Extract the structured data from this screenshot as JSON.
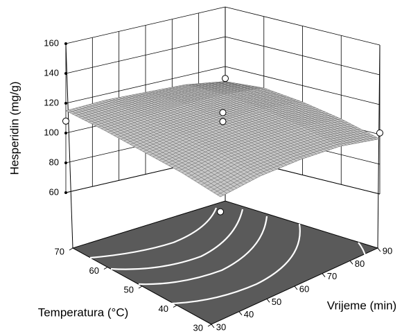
{
  "chart_data": {
    "type": "surface",
    "xlabel": "Temperatura (°C)",
    "xlim": [
      30,
      70
    ],
    "xticks": [
      30,
      40,
      50,
      60,
      70
    ],
    "ylabel": "Vrijeme (min)",
    "ylim": [
      30,
      90
    ],
    "yticks": [
      30,
      40,
      50,
      60,
      70,
      80,
      90
    ],
    "zlabel": "Hesperidin (mg/g)",
    "zlim": [
      60,
      160
    ],
    "zticks": [
      60,
      80,
      100,
      120,
      140,
      160
    ],
    "surface": {
      "x": [
        30,
        40,
        50,
        60,
        70
      ],
      "y": [
        30,
        45,
        60,
        75,
        90
      ],
      "z": [
        [
          86,
          93,
          97,
          99,
          97
        ],
        [
          95,
          101,
          104,
          106,
          104
        ],
        [
          102,
          107,
          110,
          111,
          109
        ],
        [
          109,
          112,
          114,
          114,
          112
        ],
        [
          115,
          116,
          115,
          114,
          110
        ]
      ],
      "color": "#c8c8c8"
    },
    "points": {
      "x": [
        70,
        30,
        70,
        50,
        50,
        30
      ],
      "y": [
        30,
        90,
        90,
        60,
        60,
        30
      ],
      "z": [
        108,
        101,
        112,
        115,
        109,
        76
      ],
      "color": "#ffffff"
    },
    "floor_color": "#5a5a5a"
  }
}
